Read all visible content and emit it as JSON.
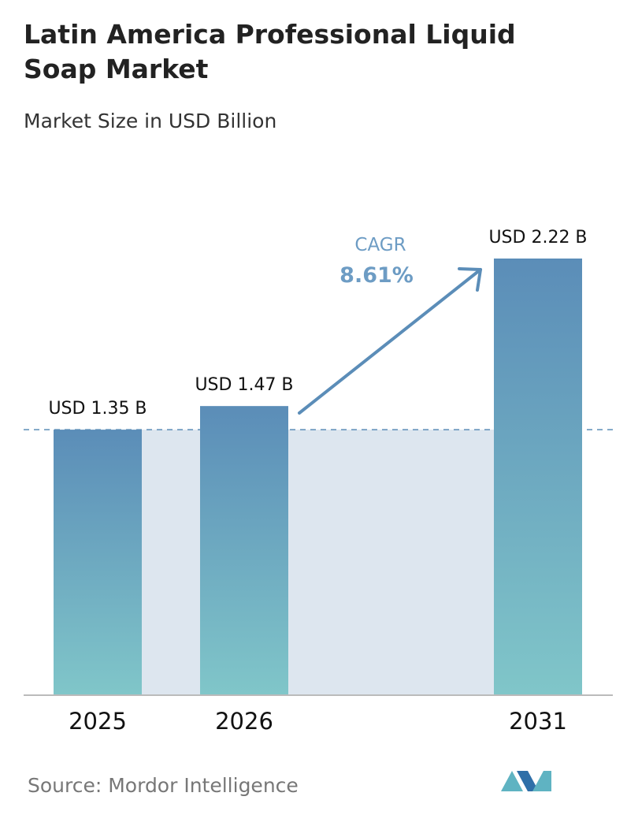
{
  "chart_data": {
    "type": "bar",
    "title": "Latin America Professional Liquid Soap Market",
    "subtitle": "Market Size in USD Billion",
    "categories": [
      "2025",
      "2026",
      "2031"
    ],
    "values": [
      1.35,
      1.47,
      2.22
    ],
    "value_labels": [
      "USD 1.35 B",
      "USD 1.47 B",
      "USD 2.22 B"
    ],
    "color": [
      "#5b8db8",
      "#80c6c9"
    ],
    "annotations": [
      "CAGR",
      "8.61%"
    ],
    "source": "Source:  Mordor Intelligence"
  }
}
